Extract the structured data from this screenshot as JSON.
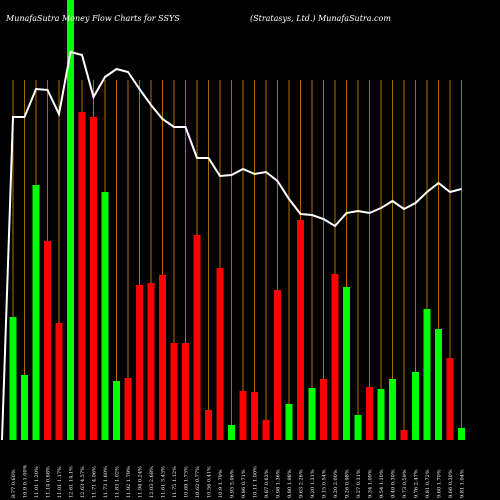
{
  "chart_data": {
    "type": "bar",
    "title": "MunafaSutra Money Flow Charts for SSYS",
    "subtitle": "(Stratasys, Ltd.) MunafaSutra.com",
    "categories": [
      "8.77 0.60%",
      "10.9 0.1.00%",
      "11.01 1.20%",
      "11.14 0.68%",
      "11.01 1.17%",
      "12.61 14.1%",
      "12.63 4.57%",
      "11.71 4.06%",
      "11.73 1.60%",
      "11.83 1.02%",
      "11.92 1.79%",
      "11.94 0.24%",
      "12.03 2.68%",
      "11.61 3.43%",
      "11.75 1.12%",
      "10.69 1.73%",
      "10.62 0.77%",
      "10.56 0.41%",
      "10.9 1.79%",
      "9.93 3.06%",
      "9.86 0.71%",
      "10.11 1.00%",
      "9.87 0.63%",
      "9.98 1.36%",
      "9.80 1.98%",
      "9.63 2.26%",
      "9.20 1.31%",
      "9.15 0.54%",
      "9.20 2.00%",
      "9.26 0.98%",
      "9.27 0.31%",
      "9.34 1.09%",
      "9.54 1.10%",
      "9.40 0.30%",
      "9.73 0.59%",
      "9.76 2.47%",
      "9.81 0.72%",
      "9.60 1.70%",
      "9.66 0.30%",
      "9.81 1.04%"
    ],
    "values": [
      123,
      65,
      255,
      199,
      117,
      440,
      328,
      323,
      248,
      59,
      62,
      155,
      157,
      165,
      97,
      97,
      205,
      30,
      172,
      15,
      49,
      48,
      20,
      150,
      36,
      220,
      52,
      61,
      166,
      153,
      25,
      53,
      51,
      61,
      10,
      68,
      131,
      111,
      82,
      12
    ],
    "colors": [
      "#00ff00",
      "#00ff00",
      "#00ff00",
      "#ff0000",
      "#ff0000",
      "#00ff00",
      "#ff0000",
      "#ff0000",
      "#00ff00",
      "#00ff00",
      "#ff0000",
      "#ff0000",
      "#ff0000",
      "#ff0000",
      "#ff0000",
      "#ff0000",
      "#ff0000",
      "#ff0000",
      "#ff0000",
      "#00ff00",
      "#ff0000",
      "#ff0000",
      "#ff0000",
      "#ff0000",
      "#00ff00",
      "#ff0000",
      "#00ff00",
      "#ff0000",
      "#ff0000",
      "#00ff00",
      "#00ff00",
      "#ff0000",
      "#00ff00",
      "#00ff00",
      "#ff0000",
      "#00ff00",
      "#00ff00",
      "#00ff00",
      "#ff0000",
      "#00ff00"
    ],
    "line": {
      "color": "#ffffff",
      "values": [
        323,
        323,
        351,
        350,
        326,
        388,
        385,
        343,
        363,
        371,
        368,
        351,
        335,
        321,
        313,
        313,
        282,
        282,
        264,
        265,
        271,
        266,
        268,
        259,
        241,
        226,
        225,
        221,
        214,
        227,
        229,
        227,
        232,
        239,
        231,
        237,
        248,
        257,
        248,
        251
      ]
    },
    "ylim": [
      0,
      440
    ],
    "grid": true,
    "grid_color": "#b36b00",
    "background": "#000000"
  }
}
